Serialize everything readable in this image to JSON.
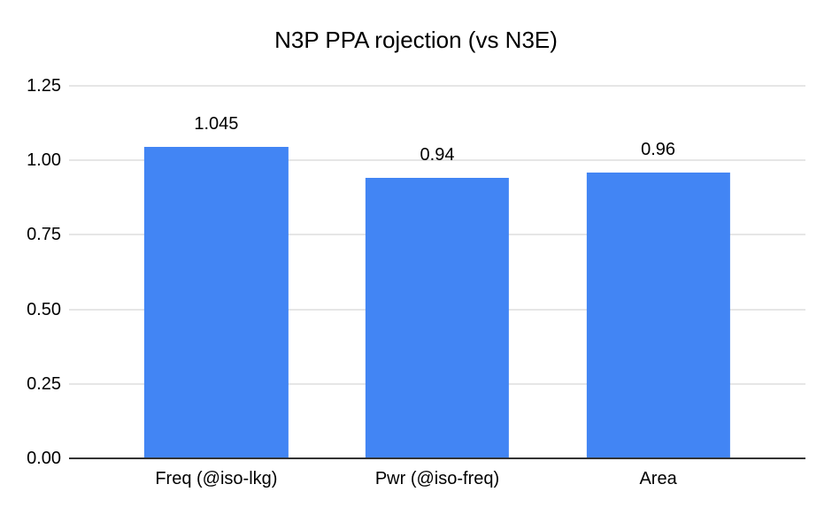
{
  "chart_data": {
    "type": "bar",
    "title": "N3P PPA rojection (vs N3E)",
    "categories": [
      "Freq (@iso-lkg)",
      "Pwr (@iso-freq)",
      "Area"
    ],
    "values": [
      1.045,
      0.94,
      0.96
    ],
    "value_labels": [
      "1.045",
      "0.94",
      "0.96"
    ],
    "xlabel": "",
    "ylabel": "",
    "ylim": [
      0,
      1.25
    ],
    "yticks": [
      "0.00",
      "0.25",
      "0.50",
      "0.75",
      "1.00",
      "1.25"
    ],
    "grid": true,
    "legend": "none",
    "bar_color": "#4285f4",
    "gridline_color": "#cccccc",
    "baseline_color": "#333333",
    "background": "#ffffff"
  }
}
